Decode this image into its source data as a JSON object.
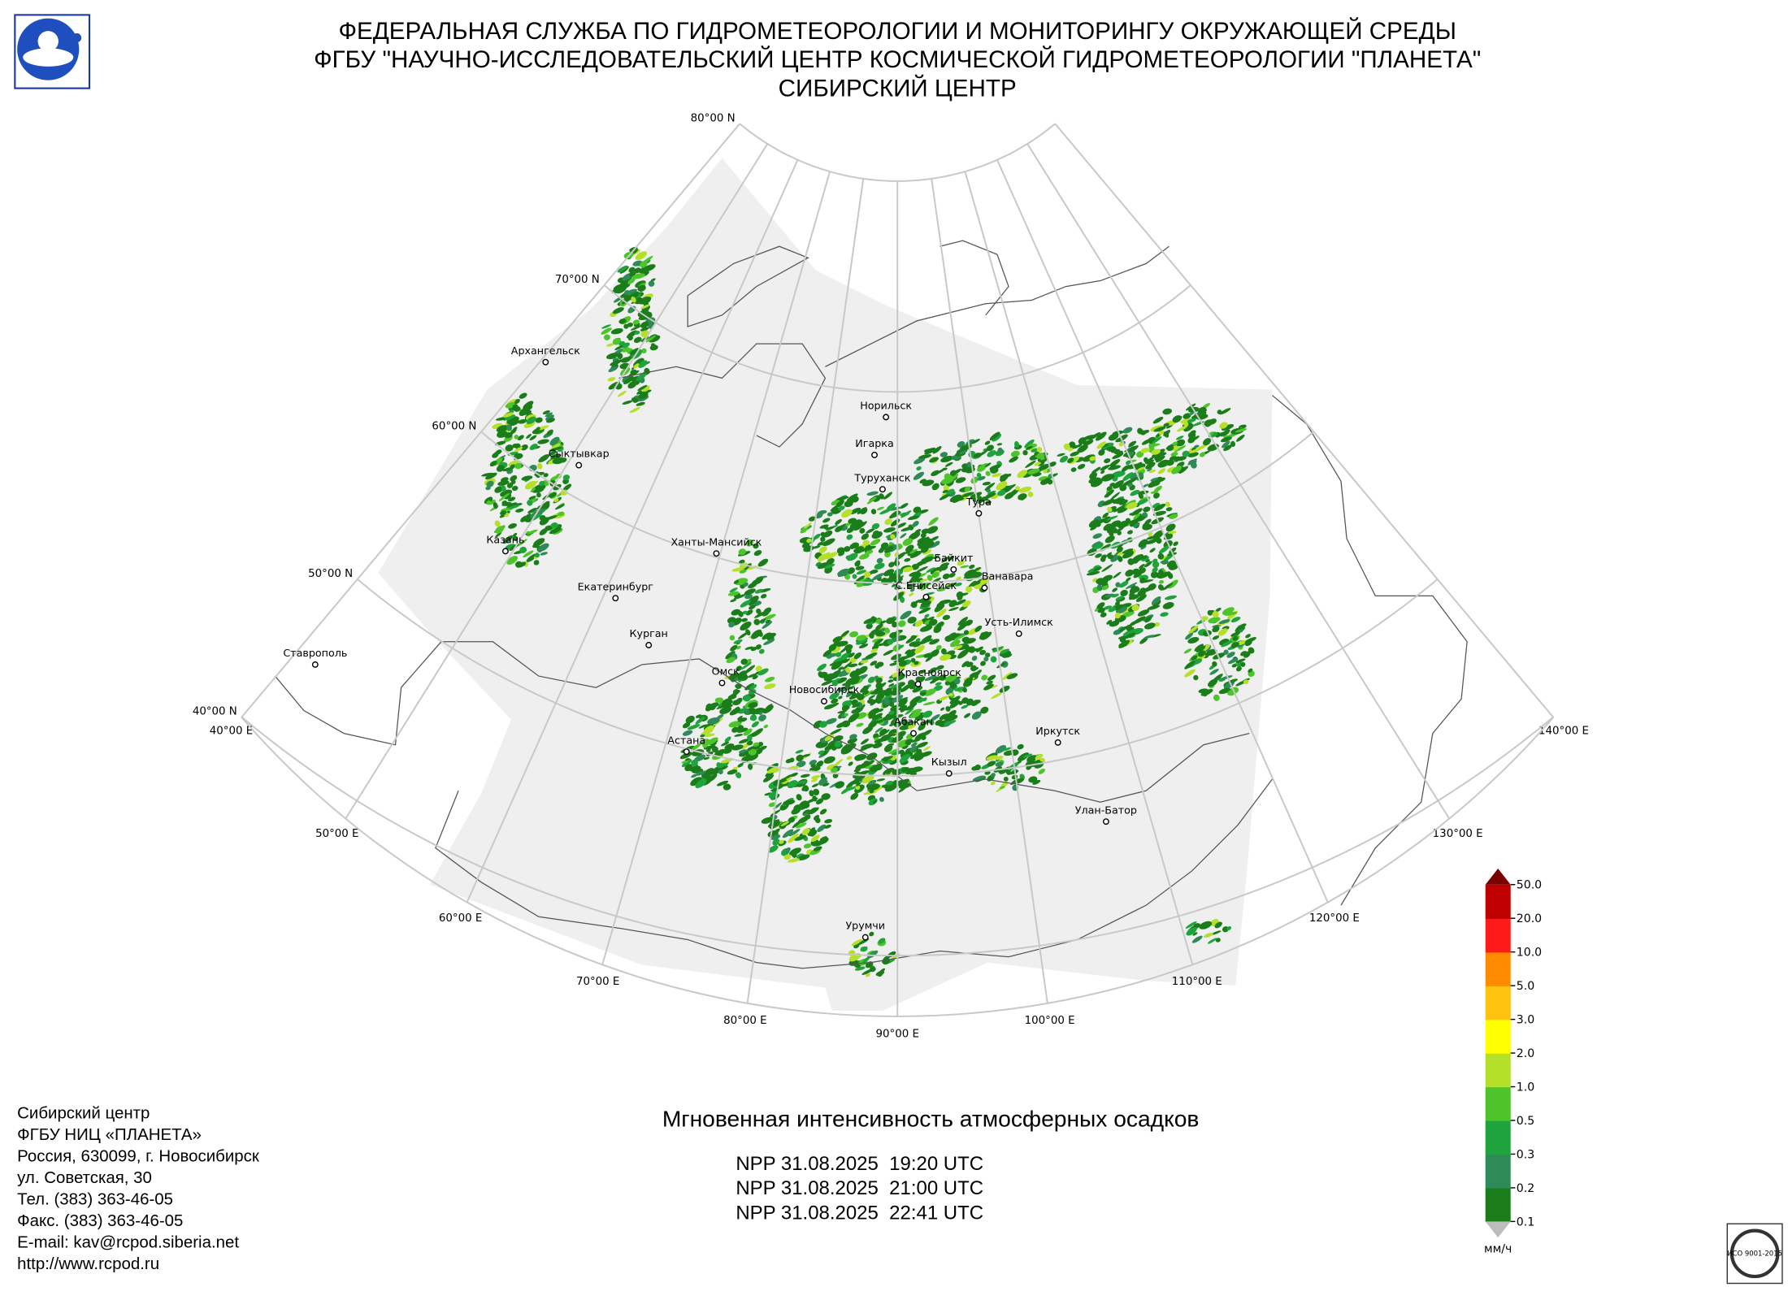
{
  "header": {
    "title_lines": [
      "ФЕДЕРАЛЬНАЯ СЛУЖБА ПО ГИДРОМЕТЕОРОЛОГИИ И МОНИТОРИНГУ ОКРУЖАЮЩЕЙ СРЕДЫ",
      "ФГБУ \"НАУЧНО-ИССЛЕДОВАТЕЛЬСКИЙ ЦЕНТР КОСМИЧЕСКОЙ ГИДРОМЕТЕОРОЛОГИИ \"ПЛАНЕТА\"",
      "СИБИРСКИЙ ЦЕНТР"
    ]
  },
  "graticule": {
    "parallels": [
      "80°00 N",
      "70°00 N",
      "60°00 N",
      "50°00 N",
      "40°00 N"
    ],
    "meridians": [
      "40°00 E",
      "50°00 E",
      "60°00 E",
      "70°00 E",
      "80°00 E",
      "90°00 E",
      "100°00 E",
      "110°00 E",
      "120°00 E",
      "130°00 E",
      "140°00 E"
    ]
  },
  "cities": [
    "Архангельск",
    "Сыктывкар",
    "Казань",
    "Екатеринбург",
    "Курган",
    "Ставрополь",
    "Ханты-Мансийск",
    "Омск",
    "Астана",
    "Новосибирск",
    "Норильск",
    "Игарка",
    "Туруханск",
    "Тура",
    "Байкит",
    "Ванавара",
    "С.Енисейск",
    "Усть-Илимск",
    "Красноярск",
    "Абакан",
    "Кызыл",
    "Иркутск",
    "Улан-Батор",
    "Урумчи"
  ],
  "legend": {
    "labels": [
      "0.1",
      "0.2",
      "0.3",
      "0.5",
      "1.0",
      "2.0",
      "3.0",
      "5.0",
      "10.0",
      "20.0",
      "50.0"
    ],
    "colors": [
      "#1a7d1a",
      "#2e8b57",
      "#1fa33c",
      "#4cc42a",
      "#b5e02a",
      "#ffff00",
      "#ffc20e",
      "#ff8c00",
      "#ff1a1a",
      "#c00000"
    ],
    "over_color": "#7a0000",
    "under_color": "#bdbdbd",
    "unit": "мм/ч"
  },
  "caption": "Мгновенная интенсивность атмосферных осадков",
  "passes": [
    "NPP 31.08.2025  19:20 UTC",
    "NPP 31.08.2025  21:00 UTC",
    "NPP 31.08.2025  22:41 UTC"
  ],
  "contact": [
    "Сибирский центр",
    "ФГБУ НИЦ «ПЛАНЕТА»",
    "Россия, 630099, г. Новосибирск",
    "ул. Советская, 30",
    "Тел. (383) 363-46-05",
    "Факс. (383) 363-46-05",
    "E-mail: kav@rcpod.siberia.net",
    "http://www.rcpod.ru"
  ],
  "stamp": "ИСО 9001-2015"
}
